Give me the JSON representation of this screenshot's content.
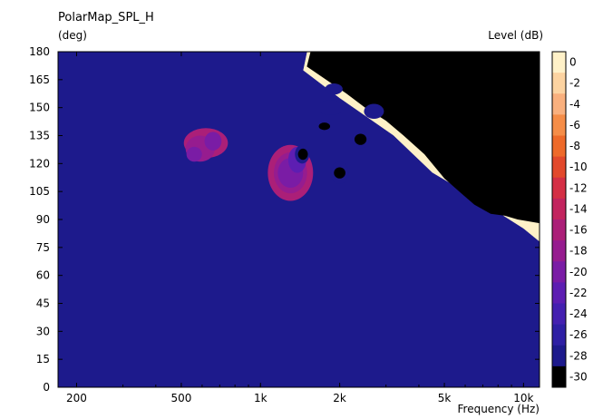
{
  "chart_data": {
    "type": "heatmap",
    "title": "PolarMap_SPL_H",
    "ylabel": "(deg)",
    "xlabel": "Frequency  (Hz)",
    "colorbar_label": "Level  (dB)",
    "x_scale": "log",
    "xlim": [
      170,
      11500
    ],
    "ylim": [
      0,
      180
    ],
    "x_ticks": [
      {
        "value": 200,
        "label": "200"
      },
      {
        "value": 500,
        "label": "500"
      },
      {
        "value": 1000,
        "label": "1k"
      },
      {
        "value": 2000,
        "label": "2k"
      },
      {
        "value": 5000,
        "label": "5k"
      },
      {
        "value": 10000,
        "label": "10k"
      }
    ],
    "y_ticks": [
      0,
      15,
      30,
      45,
      60,
      75,
      90,
      105,
      120,
      135,
      150,
      165,
      180
    ],
    "levels": [
      {
        "label": "0",
        "color": "#fff1c8"
      },
      {
        "label": "-2",
        "color": "#fcd3a1"
      },
      {
        "label": "-4",
        "color": "#f9b07e"
      },
      {
        "label": "-6",
        "color": "#f58d48"
      },
      {
        "label": "-8",
        "color": "#ee6a2a"
      },
      {
        "label": "-10",
        "color": "#e2492c"
      },
      {
        "label": "-12",
        "color": "#d42f45"
      },
      {
        "label": "-14",
        "color": "#c2245e"
      },
      {
        "label": "-16",
        "color": "#ab1f78"
      },
      {
        "label": "-18",
        "color": "#961c8f"
      },
      {
        "label": "-20",
        "color": "#7a1ca5"
      },
      {
        "label": "-22",
        "color": "#5d1eb2"
      },
      {
        "label": "-24",
        "color": "#4420b0"
      },
      {
        "label": "-26",
        "color": "#2e1fa4"
      },
      {
        "label": "-28",
        "color": "#1d1a8c"
      },
      {
        "label": "-30",
        "color": "#000000"
      }
    ],
    "contours": [
      {
        "level": "-2",
        "points": [
          [
            170,
            65
          ],
          [
            185,
            70
          ],
          [
            220,
            60
          ],
          [
            300,
            50
          ],
          [
            500,
            43
          ],
          [
            1000,
            38
          ],
          [
            2000,
            35
          ],
          [
            5000,
            33
          ],
          [
            10000,
            31
          ],
          [
            11500,
            29
          ],
          [
            11500,
            0
          ],
          [
            170,
            0
          ]
        ]
      },
      {
        "level": "-4",
        "points": [
          [
            170,
            120
          ],
          [
            185,
            130
          ],
          [
            200,
            180
          ],
          [
            250,
            180
          ],
          [
            240,
            165
          ],
          [
            230,
            140
          ],
          [
            240,
            115
          ],
          [
            300,
            85
          ],
          [
            500,
            62
          ],
          [
            1000,
            52
          ],
          [
            2000,
            47
          ],
          [
            5000,
            42
          ],
          [
            10000,
            36
          ],
          [
            11500,
            33
          ],
          [
            11500,
            0
          ],
          [
            170,
            0
          ]
        ]
      },
      {
        "level": "-6",
        "points": [
          [
            280,
            180
          ],
          [
            270,
            160
          ],
          [
            280,
            130
          ],
          [
            330,
            100
          ],
          [
            450,
            80
          ],
          [
            800,
            65
          ],
          [
            1500,
            57
          ],
          [
            3000,
            51
          ],
          [
            6000,
            45
          ],
          [
            10000,
            40
          ],
          [
            11500,
            37
          ],
          [
            11500,
            0
          ],
          [
            170,
            0
          ],
          [
            170,
            180
          ]
        ]
      },
      {
        "level": "-8",
        "points": [
          [
            330,
            180
          ],
          [
            315,
            160
          ],
          [
            320,
            135
          ],
          [
            360,
            110
          ],
          [
            480,
            90
          ],
          [
            800,
            75
          ],
          [
            1500,
            65
          ],
          [
            3000,
            57
          ],
          [
            6000,
            49
          ],
          [
            10000,
            43
          ],
          [
            11500,
            40
          ],
          [
            11500,
            0
          ],
          [
            170,
            0
          ],
          [
            170,
            180
          ]
        ]
      },
      {
        "level": "-10",
        "points": [
          [
            380,
            180
          ],
          [
            355,
            160
          ],
          [
            350,
            140
          ],
          [
            380,
            120
          ],
          [
            490,
            100
          ],
          [
            800,
            84
          ],
          [
            1500,
            72
          ],
          [
            3000,
            62
          ],
          [
            6000,
            53
          ],
          [
            10000,
            46
          ],
          [
            11500,
            43
          ],
          [
            11500,
            0
          ],
          [
            170,
            0
          ],
          [
            170,
            180
          ]
        ]
      },
      {
        "level": "-12",
        "points": [
          [
            430,
            180
          ],
          [
            395,
            160
          ],
          [
            385,
            140
          ],
          [
            410,
            125
          ],
          [
            510,
            108
          ],
          [
            800,
            93
          ],
          [
            1500,
            79
          ],
          [
            3000,
            67
          ],
          [
            6000,
            57
          ],
          [
            10000,
            49
          ],
          [
            11500,
            46
          ],
          [
            11500,
            0
          ],
          [
            170,
            0
          ],
          [
            170,
            180
          ]
        ]
      },
      {
        "level": "-14",
        "points": [
          [
            480,
            180
          ],
          [
            440,
            160
          ],
          [
            425,
            145
          ],
          [
            440,
            130
          ],
          [
            530,
            115
          ],
          [
            800,
            100
          ],
          [
            1500,
            86
          ],
          [
            3000,
            73
          ],
          [
            6000,
            61
          ],
          [
            10000,
            52
          ],
          [
            11500,
            49
          ],
          [
            11500,
            0
          ],
          [
            170,
            0
          ],
          [
            170,
            180
          ]
        ]
      },
      {
        "level": "-16",
        "points": [
          [
            540,
            180
          ],
          [
            490,
            162
          ],
          [
            470,
            148
          ],
          [
            480,
            132
          ],
          [
            550,
            120
          ],
          [
            800,
            108
          ],
          [
            1500,
            93
          ],
          [
            3000,
            79
          ],
          [
            6000,
            66
          ],
          [
            10000,
            55
          ],
          [
            11500,
            52
          ],
          [
            11500,
            0
          ],
          [
            170,
            0
          ],
          [
            170,
            180
          ]
        ]
      },
      {
        "level": "-18",
        "points": [
          [
            610,
            180
          ],
          [
            550,
            163
          ],
          [
            520,
            150
          ],
          [
            530,
            137
          ],
          [
            600,
            127
          ],
          [
            850,
            117
          ],
          [
            1500,
            100
          ],
          [
            3000,
            85
          ],
          [
            6000,
            71
          ],
          [
            10000,
            59
          ],
          [
            11500,
            55
          ],
          [
            11500,
            0
          ],
          [
            170,
            0
          ],
          [
            170,
            180
          ]
        ]
      },
      {
        "level": "-20",
        "points": [
          [
            700,
            180
          ],
          [
            620,
            162
          ],
          [
            590,
            148
          ],
          [
            650,
            140
          ],
          [
            900,
            128
          ],
          [
            1600,
            108
          ],
          [
            3000,
            92
          ],
          [
            6000,
            77
          ],
          [
            10000,
            63
          ],
          [
            11500,
            59
          ],
          [
            11500,
            0
          ],
          [
            170,
            0
          ],
          [
            170,
            180
          ]
        ]
      },
      {
        "level": "-22",
        "points": [
          [
            820,
            180
          ],
          [
            740,
            162
          ],
          [
            760,
            150
          ],
          [
            1000,
            138
          ],
          [
            1700,
            120
          ],
          [
            3200,
            100
          ],
          [
            6000,
            84
          ],
          [
            10000,
            68
          ],
          [
            11500,
            63
          ],
          [
            11500,
            0
          ],
          [
            170,
            0
          ],
          [
            170,
            180
          ]
        ]
      },
      {
        "level": "-24",
        "points": [
          [
            1050,
            180
          ],
          [
            960,
            165
          ],
          [
            1100,
            150
          ],
          [
            1800,
            128
          ],
          [
            3300,
            108
          ],
          [
            6000,
            91
          ],
          [
            10000,
            73
          ],
          [
            11500,
            67
          ],
          [
            11500,
            0
          ],
          [
            170,
            0
          ],
          [
            170,
            180
          ]
        ]
      },
      {
        "level": "-26",
        "points": [
          [
            1300,
            180
          ],
          [
            1250,
            165
          ],
          [
            1600,
            145
          ],
          [
            2600,
            125
          ],
          [
            4000,
            110
          ],
          [
            6500,
            97
          ],
          [
            10000,
            79
          ],
          [
            11500,
            72
          ],
          [
            11500,
            0
          ],
          [
            170,
            0
          ],
          [
            170,
            180
          ]
        ]
      },
      {
        "level": "-28",
        "points": [
          [
            1500,
            180
          ],
          [
            1450,
            170
          ],
          [
            2000,
            155
          ],
          [
            3200,
            135
          ],
          [
            4500,
            115
          ],
          [
            6800,
            100
          ],
          [
            10000,
            85
          ],
          [
            11500,
            78
          ],
          [
            11500,
            0
          ],
          [
            170,
            0
          ],
          [
            170,
            180
          ]
        ]
      }
    ],
    "black_region": [
      [
        1550,
        180
      ],
      [
        1500,
        172
      ],
      [
        2100,
        158
      ],
      [
        2500,
        150
      ],
      [
        3000,
        143
      ],
      [
        3500,
        135
      ],
      [
        4200,
        125
      ],
      [
        5000,
        112
      ],
      [
        5800,
        104
      ],
      [
        6500,
        98
      ],
      [
        7500,
        93
      ],
      [
        8500,
        92
      ],
      [
        9500,
        90
      ],
      [
        11500,
        88
      ],
      [
        11500,
        180
      ]
    ],
    "islands": [
      {
        "level": "-16",
        "cx": 620,
        "cy": 131,
        "rx": 120,
        "ry": 8
      },
      {
        "level": "-18",
        "cx": 590,
        "cy": 128,
        "rx": 70,
        "ry": 7
      },
      {
        "level": "-20",
        "cx": 560,
        "cy": 125,
        "rx": 30,
        "ry": 4
      },
      {
        "level": "-20",
        "cx": 660,
        "cy": 132,
        "rx": 40,
        "ry": 5
      },
      {
        "level": "-16",
        "cx": 1300,
        "cy": 115,
        "rx": 260,
        "ry": 15
      },
      {
        "level": "-18",
        "cx": 1300,
        "cy": 115,
        "rx": 180,
        "ry": 11
      },
      {
        "level": "-20",
        "cx": 1300,
        "cy": 115,
        "rx": 130,
        "ry": 8
      },
      {
        "level": "-22",
        "cx": 1380,
        "cy": 122,
        "rx": 90,
        "ry": 7
      },
      {
        "level": "-28",
        "cx": 1440,
        "cy": 125,
        "rx": 70,
        "ry": 5
      },
      {
        "level": "-30",
        "cx": 1450,
        "cy": 125,
        "rx": 40,
        "ry": 3
      },
      {
        "level": "-28",
        "cx": 2000,
        "cy": 115,
        "rx": 130,
        "ry": 6
      },
      {
        "level": "-30",
        "cx": 2000,
        "cy": 115,
        "rx": 70,
        "ry": 3
      },
      {
        "level": "-28",
        "cx": 2400,
        "cy": 133,
        "rx": 150,
        "ry": 5
      },
      {
        "level": "-30",
        "cx": 2400,
        "cy": 133,
        "rx": 90,
        "ry": 3
      },
      {
        "level": "-28",
        "cx": 1850,
        "cy": 150,
        "rx": 200,
        "ry": 4
      },
      {
        "level": "-30",
        "cx": 1750,
        "cy": 140,
        "rx": 60,
        "ry": 2
      },
      {
        "level": "-28",
        "cx": 1900,
        "cy": 160,
        "rx": 120,
        "ry": 3
      },
      {
        "level": "-28",
        "cx": 2700,
        "cy": 148,
        "rx": 200,
        "ry": 4
      }
    ],
    "black_spots": [
      {
        "cx": 3300,
        "cy": 155,
        "rx": 500,
        "ry": 4
      },
      {
        "cx": 10800,
        "cy": 175,
        "rx": 700,
        "ry": 4
      },
      {
        "cx": 6000,
        "cy": 118,
        "rx": 800,
        "ry": 4
      }
    ]
  }
}
